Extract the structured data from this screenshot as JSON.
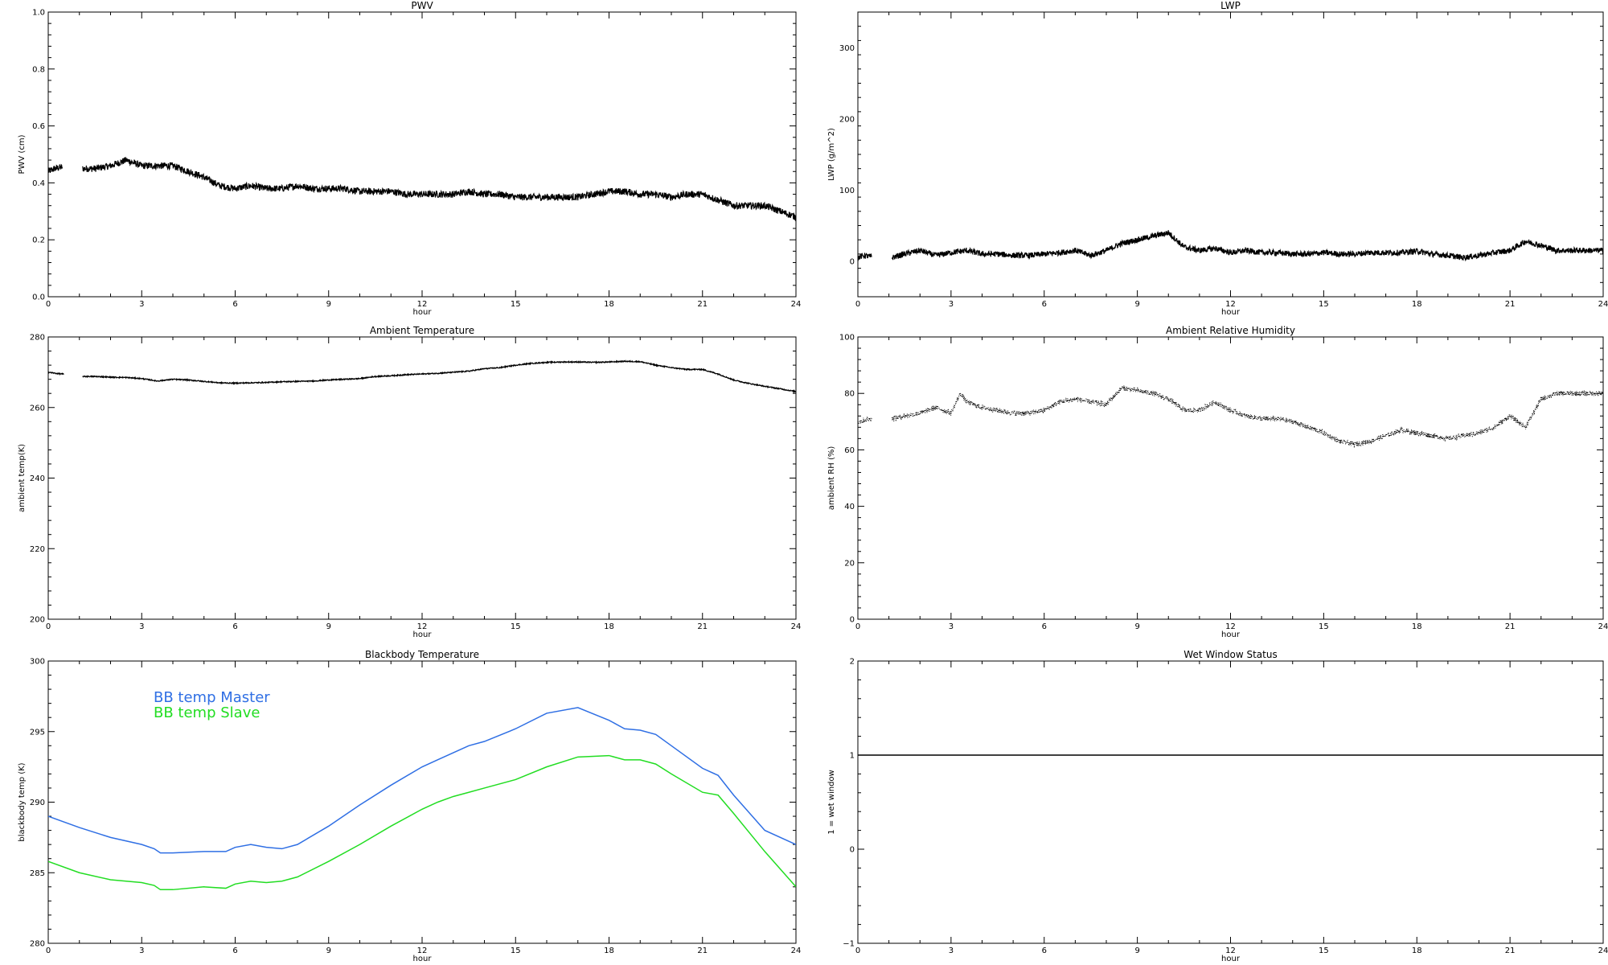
{
  "chart_data": [
    {
      "id": "pwv",
      "type": "line",
      "title": "PWV",
      "xlabel": "hour",
      "ylabel": "PWV (cm)",
      "xlim": [
        0,
        24
      ],
      "ylim": [
        0,
        1.0
      ],
      "xticks": [
        0,
        3,
        6,
        9,
        12,
        15,
        18,
        21,
        24
      ],
      "yticks": [
        0.0,
        0.2,
        0.4,
        0.6,
        0.8,
        1.0
      ],
      "ytick_labels": [
        "0.0",
        "0.2",
        "0.4",
        "0.6",
        "0.8",
        "1.0"
      ],
      "noise": 0.012,
      "series": [
        {
          "color": "#000000",
          "segments": [
            {
              "x": [
                0,
                0.2,
                0.45
              ],
              "y": [
                0.44,
                0.45,
                0.455
              ]
            },
            {
              "x": [
                1.1,
                1.5,
                2.0,
                2.5,
                3.0,
                3.5,
                4.0,
                4.5,
                5.0,
                5.5,
                6.0,
                6.5,
                7.0,
                7.5,
                8.0,
                8.5,
                9.0,
                9.5,
                10.0,
                10.5,
                11.0,
                11.5,
                12.0,
                12.5,
                13.0,
                13.5,
                14.0,
                14.5,
                15.0,
                15.5,
                16.0,
                16.5,
                17.0,
                17.5,
                18.0,
                18.5,
                19.0,
                19.5,
                20.0,
                20.5,
                21.0,
                21.5,
                22.0,
                22.5,
                23.0,
                23.5,
                24.0
              ],
              "y": [
                0.45,
                0.45,
                0.46,
                0.48,
                0.46,
                0.46,
                0.46,
                0.44,
                0.42,
                0.39,
                0.38,
                0.39,
                0.38,
                0.38,
                0.39,
                0.38,
                0.38,
                0.38,
                0.37,
                0.37,
                0.37,
                0.36,
                0.36,
                0.36,
                0.36,
                0.37,
                0.36,
                0.36,
                0.35,
                0.35,
                0.35,
                0.35,
                0.35,
                0.36,
                0.37,
                0.37,
                0.36,
                0.36,
                0.35,
                0.36,
                0.36,
                0.34,
                0.32,
                0.32,
                0.32,
                0.3,
                0.28
              ]
            }
          ]
        }
      ]
    },
    {
      "id": "lwp",
      "type": "line",
      "title": "LWP",
      "xlabel": "hour",
      "ylabel": "LWP (g/m^2)",
      "xlim": [
        0,
        24
      ],
      "ylim": [
        -50,
        350
      ],
      "xticks": [
        0,
        3,
        6,
        9,
        12,
        15,
        18,
        21,
        24
      ],
      "yticks": [
        0,
        100,
        200,
        300
      ],
      "ytick_labels": [
        "0",
        "100",
        "200",
        "300"
      ],
      "noise": 4,
      "series": [
        {
          "color": "#000000",
          "segments": [
            {
              "x": [
                0,
                0.2,
                0.45
              ],
              "y": [
                5,
                8,
                6
              ]
            },
            {
              "x": [
                1.1,
                1.5,
                2.0,
                2.5,
                3.0,
                3.5,
                4.0,
                4.5,
                5.0,
                5.5,
                6.0,
                6.5,
                7.0,
                7.5,
                8.0,
                8.5,
                9.0,
                9.5,
                10.0,
                10.5,
                11.0,
                11.5,
                12.0,
                12.5,
                13.0,
                13.5,
                14.0,
                14.5,
                15.0,
                15.5,
                16.0,
                16.5,
                17.0,
                17.5,
                18.0,
                18.5,
                19.0,
                19.5,
                20.0,
                20.5,
                21.0,
                21.5,
                22.0,
                22.5,
                23.0,
                23.5,
                24.0
              ],
              "y": [
                5,
                10,
                15,
                8,
                12,
                15,
                10,
                10,
                8,
                8,
                10,
                12,
                15,
                8,
                15,
                25,
                30,
                35,
                40,
                20,
                15,
                18,
                12,
                15,
                12,
                12,
                10,
                10,
                12,
                10,
                10,
                12,
                12,
                12,
                14,
                10,
                8,
                5,
                8,
                12,
                15,
                28,
                22,
                15,
                15,
                15,
                15
              ]
            }
          ]
        }
      ]
    },
    {
      "id": "ambient-temp",
      "type": "line",
      "title": "Ambient Temperature",
      "xlabel": "hour",
      "ylabel": "ambient temp(K)",
      "xlim": [
        0,
        24
      ],
      "ylim": [
        200,
        280
      ],
      "xticks": [
        0,
        3,
        6,
        9,
        12,
        15,
        18,
        21,
        24
      ],
      "yticks": [
        200,
        220,
        240,
        260,
        280
      ],
      "ytick_labels": [
        "200",
        "220",
        "240",
        "260",
        "280"
      ],
      "noise": 0.15,
      "series": [
        {
          "color": "#000000",
          "segments": [
            {
              "x": [
                0,
                0.3,
                0.5
              ],
              "y": [
                270,
                269.6,
                269.5
              ]
            },
            {
              "x": [
                1.1,
                1.5,
                2.0,
                2.5,
                3.0,
                3.3,
                3.5,
                4.0,
                4.5,
                5.0,
                5.5,
                6.0,
                6.5,
                7.0,
                7.5,
                8.0,
                8.5,
                9.0,
                9.5,
                10.0,
                10.5,
                11.0,
                11.5,
                12.0,
                12.5,
                13.0,
                13.5,
                14.0,
                14.5,
                15.0,
                15.5,
                16.0,
                16.5,
                17.0,
                17.5,
                18.0,
                18.5,
                19.0,
                19.5,
                20.0,
                20.5,
                21.0,
                21.5,
                22.0,
                22.5,
                23.0,
                23.5,
                24.0
              ],
              "y": [
                268.8,
                268.8,
                268.6,
                268.5,
                268.2,
                267.8,
                267.5,
                268.0,
                267.8,
                267.4,
                267.0,
                266.9,
                267.0,
                267.1,
                267.3,
                267.4,
                267.5,
                267.8,
                268.0,
                268.2,
                268.8,
                269.0,
                269.3,
                269.5,
                269.7,
                270.0,
                270.3,
                271.0,
                271.3,
                272.0,
                272.5,
                272.8,
                272.9,
                272.9,
                272.8,
                272.9,
                273.1,
                273.0,
                272.0,
                271.3,
                270.8,
                270.8,
                269.5,
                267.8,
                266.8,
                266.0,
                265.3,
                264.5
              ]
            }
          ]
        }
      ]
    },
    {
      "id": "ambient-rh",
      "type": "scatter",
      "title": "Ambient Relative Humidity",
      "xlabel": "hour",
      "ylabel": "ambient RH (%)",
      "xlim": [
        0,
        24
      ],
      "ylim": [
        0,
        100
      ],
      "xticks": [
        0,
        3,
        6,
        9,
        12,
        15,
        18,
        21,
        24
      ],
      "yticks": [
        0,
        20,
        40,
        60,
        80,
        100
      ],
      "ytick_labels": [
        "0",
        "20",
        "40",
        "60",
        "80",
        "100"
      ],
      "noise": 0.9,
      "series": [
        {
          "color": "#000000",
          "segments": [
            {
              "x": [
                0,
                0.2,
                0.45
              ],
              "y": [
                70,
                70.5,
                71
              ]
            },
            {
              "x": [
                1.1,
                1.5,
                2.0,
                2.5,
                3.0,
                3.3,
                3.5,
                4.0,
                4.5,
                5.0,
                5.5,
                6.0,
                6.5,
                7.0,
                7.5,
                8.0,
                8.5,
                9.0,
                9.5,
                10.0,
                10.5,
                11.0,
                11.5,
                12.0,
                12.5,
                13.0,
                13.5,
                14.0,
                14.5,
                15.0,
                15.5,
                16.0,
                16.5,
                17.0,
                17.5,
                18.0,
                18.5,
                19.0,
                19.5,
                20.0,
                20.5,
                21.0,
                21.5,
                22.0,
                22.5,
                23.0,
                23.5,
                24.0
              ],
              "y": [
                71,
                72,
                73,
                75,
                73,
                80,
                77,
                75,
                74,
                73,
                73,
                74,
                77,
                78,
                77,
                76,
                82,
                81,
                80,
                78,
                74,
                74,
                77,
                74,
                72,
                71,
                71,
                70,
                68,
                66,
                63,
                62,
                63,
                65,
                67,
                66,
                65,
                64,
                65,
                66,
                68,
                72,
                68,
                78,
                80,
                80,
                80,
                80
              ]
            }
          ]
        }
      ]
    },
    {
      "id": "bb-temp",
      "type": "line",
      "title": "Blackbody Temperature",
      "xlabel": "hour",
      "ylabel": "blackbody temp (K)",
      "xlim": [
        0,
        24
      ],
      "ylim": [
        280,
        300
      ],
      "xticks": [
        0,
        3,
        6,
        9,
        12,
        15,
        18,
        21,
        24
      ],
      "yticks": [
        280,
        285,
        290,
        295,
        300
      ],
      "ytick_labels": [
        "280",
        "285",
        "290",
        "295",
        "300"
      ],
      "noise": 0,
      "legend": {
        "placement": "top-left"
      },
      "series": [
        {
          "name": "BB temp Master",
          "color": "#2f6fe4",
          "segments": [
            {
              "x": [
                0,
                1,
                2,
                3,
                3.4,
                3.6,
                4,
                5,
                5.7,
                6,
                6.5,
                7,
                7.5,
                8,
                9,
                10,
                11,
                12,
                12.5,
                13,
                13.5,
                14,
                15,
                16,
                17,
                18,
                18.5,
                19,
                19.5,
                20,
                21,
                21.5,
                22,
                23,
                24
              ],
              "y": [
                289.0,
                288.2,
                287.5,
                287.0,
                286.7,
                286.4,
                286.4,
                286.5,
                286.5,
                286.8,
                287.0,
                286.8,
                286.7,
                287.0,
                288.3,
                289.8,
                291.2,
                292.5,
                293.0,
                293.5,
                294.0,
                294.3,
                295.2,
                296.3,
                296.7,
                295.8,
                295.2,
                295.1,
                294.8,
                294.0,
                292.4,
                291.9,
                290.5,
                288.0,
                287.0
              ]
            }
          ]
        },
        {
          "name": "BB temp Slave",
          "color": "#22dd22",
          "segments": [
            {
              "x": [
                0,
                1,
                2,
                3,
                3.4,
                3.6,
                4,
                5,
                5.7,
                6,
                6.5,
                7,
                7.5,
                8,
                9,
                10,
                11,
                12,
                12.5,
                13,
                13.5,
                14,
                15,
                16,
                17,
                18,
                18.5,
                19,
                19.5,
                20,
                21,
                21.5,
                22,
                23,
                24
              ],
              "y": [
                285.8,
                285.0,
                284.5,
                284.3,
                284.1,
                283.8,
                283.8,
                284.0,
                283.9,
                284.2,
                284.4,
                284.3,
                284.4,
                284.7,
                285.8,
                287.0,
                288.3,
                289.5,
                290.0,
                290.4,
                290.7,
                291.0,
                291.6,
                292.5,
                293.2,
                293.3,
                293.0,
                293.0,
                292.7,
                292.0,
                290.7,
                290.5,
                289.2,
                286.5,
                284.0
              ]
            }
          ]
        }
      ]
    },
    {
      "id": "wet-window",
      "type": "line",
      "title": "Wet Window Status",
      "xlabel": "hour",
      "ylabel": "1 = wet window",
      "xlim": [
        0,
        24
      ],
      "ylim": [
        -1,
        2
      ],
      "xticks": [
        0,
        3,
        6,
        9,
        12,
        15,
        18,
        21,
        24
      ],
      "yticks": [
        -1,
        0,
        1,
        2
      ],
      "ytick_labels": [
        "−1",
        "0",
        "1",
        "2"
      ],
      "noise": 0,
      "series": [
        {
          "color": "#000000",
          "segments": [
            {
              "x": [
                0,
                24
              ],
              "y": [
                1,
                1
              ]
            }
          ]
        }
      ]
    }
  ]
}
